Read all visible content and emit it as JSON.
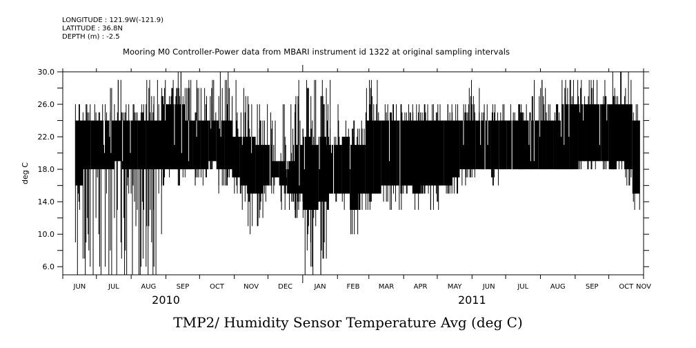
{
  "header": {
    "longitude": "LONGITUDE : 121.9W(-121.9)",
    "latitude": "LATITUDE : 36.8N",
    "depth": "DEPTH (m) : -2.5",
    "subtitle": "Mooring M0 Controller-Power data from MBARI instrument id 1322 at original sampling intervals"
  },
  "chart_data": {
    "type": "line",
    "title": "TMP2/ Humidity Sensor Temperature Avg (deg C)",
    "subtitle": "Mooring M0 Controller-Power data from MBARI instrument id 1322 at original sampling intervals",
    "xlabel": "",
    "ylabel": "deg C",
    "ylim": [
      5.0,
      30.0
    ],
    "xlim": [
      "2010-06-01",
      "2011-11-01"
    ],
    "grid": false,
    "y_ticks": [
      "6.0",
      "10.0",
      "14.0",
      "18.0",
      "22.0",
      "26.0",
      "30.0"
    ],
    "y_tick_values": [
      6,
      10,
      14,
      18,
      22,
      26,
      30
    ],
    "y_minor_tick_values": [
      8,
      12,
      16,
      20,
      24,
      28
    ],
    "x_ticks": [
      "JUN",
      "JUL",
      "AUG",
      "SEP",
      "OCT",
      "NOV",
      "DEC",
      "JAN",
      "FEB",
      "MAR",
      "APR",
      "MAY",
      "JUN",
      "JUL",
      "AUG",
      "SEP",
      "OCT",
      "NOV"
    ],
    "x_tick_dates": [
      "2010-06-01",
      "2010-07-01",
      "2010-08-01",
      "2010-09-01",
      "2010-10-01",
      "2010-11-01",
      "2010-12-01",
      "2011-01-01",
      "2011-02-01",
      "2011-03-01",
      "2011-04-01",
      "2011-05-01",
      "2011-06-01",
      "2011-07-01",
      "2011-08-01",
      "2011-09-01",
      "2011-10-01",
      "2011-11-01"
    ],
    "year_labels": [
      {
        "label": "2010",
        "date": "2010-09-01"
      },
      {
        "label": "2011",
        "date": "2011-06-01"
      }
    ],
    "series": [
      {
        "name": "TMP2 weekly envelope",
        "note": "Dense raw series summarized per week: [week_start_date, min, core_low, core_high, max] in deg C",
        "weeks": [
          [
            "2010-06-12",
            5.0,
            16.0,
            24.0,
            26.0
          ],
          [
            "2010-06-19",
            5.0,
            18.0,
            24.0,
            26.0
          ],
          [
            "2010-06-26",
            5.0,
            18.0,
            24.0,
            26.0
          ],
          [
            "2010-07-03",
            5.0,
            18.0,
            24.0,
            26.0
          ],
          [
            "2010-07-10",
            5.0,
            18.0,
            24.0,
            28.0
          ],
          [
            "2010-07-17",
            5.0,
            19.0,
            24.0,
            29.0
          ],
          [
            "2010-07-24",
            5.0,
            18.0,
            24.0,
            26.0
          ],
          [
            "2010-07-31",
            5.0,
            18.0,
            24.0,
            26.0
          ],
          [
            "2010-08-07",
            5.0,
            18.0,
            24.0,
            26.0
          ],
          [
            "2010-08-14",
            5.0,
            18.0,
            24.0,
            29.0
          ],
          [
            "2010-08-21",
            5.0,
            18.0,
            24.0,
            29.0
          ],
          [
            "2010-08-28",
            16.0,
            18.0,
            26.0,
            29.0
          ],
          [
            "2010-09-04",
            18.0,
            18.0,
            26.0,
            29.0
          ],
          [
            "2010-09-11",
            16.0,
            18.0,
            26.0,
            30.0
          ],
          [
            "2010-09-18",
            18.0,
            18.0,
            24.0,
            29.0
          ],
          [
            "2010-09-25",
            16.0,
            18.0,
            24.0,
            29.0
          ],
          [
            "2010-10-02",
            16.0,
            18.0,
            24.0,
            28.0
          ],
          [
            "2010-10-09",
            18.0,
            19.0,
            24.0,
            29.0
          ],
          [
            "2010-10-16",
            15.0,
            18.0,
            24.0,
            30.0
          ],
          [
            "2010-10-23",
            16.0,
            18.0,
            24.0,
            30.0
          ],
          [
            "2010-10-30",
            15.0,
            17.0,
            22.0,
            29.0
          ],
          [
            "2010-11-06",
            13.0,
            16.0,
            22.0,
            28.0
          ],
          [
            "2010-11-13",
            10.0,
            15.0,
            22.0,
            26.0
          ],
          [
            "2010-11-20",
            11.0,
            15.0,
            21.0,
            26.0
          ],
          [
            "2010-11-27",
            14.0,
            16.0,
            21.0,
            26.0
          ],
          [
            "2010-12-04",
            15.0,
            17.0,
            19.0,
            24.0
          ],
          [
            "2010-12-11",
            13.0,
            16.0,
            19.0,
            26.0
          ],
          [
            "2010-12-18",
            13.0,
            15.0,
            19.0,
            26.0
          ],
          [
            "2010-12-25",
            12.0,
            15.0,
            21.0,
            29.0
          ],
          [
            "2011-01-01",
            5.0,
            13.0,
            22.0,
            29.0
          ],
          [
            "2011-01-08",
            5.0,
            13.0,
            21.0,
            29.0
          ],
          [
            "2011-01-15",
            5.0,
            14.0,
            22.0,
            29.0
          ],
          [
            "2011-01-22",
            13.0,
            15.0,
            21.0,
            29.0
          ],
          [
            "2011-01-29",
            14.0,
            15.0,
            21.0,
            26.0
          ],
          [
            "2011-02-05",
            13.0,
            15.0,
            22.0,
            24.0
          ],
          [
            "2011-02-12",
            10.0,
            13.0,
            21.0,
            24.0
          ],
          [
            "2011-02-19",
            13.0,
            15.0,
            21.0,
            24.0
          ],
          [
            "2011-02-26",
            13.0,
            15.0,
            24.0,
            29.0
          ],
          [
            "2011-03-05",
            15.0,
            15.0,
            24.0,
            29.0
          ],
          [
            "2011-03-12",
            14.0,
            16.0,
            24.0,
            26.0
          ],
          [
            "2011-03-19",
            13.0,
            16.0,
            24.0,
            26.0
          ],
          [
            "2011-03-26",
            13.0,
            16.0,
            24.0,
            26.0
          ],
          [
            "2011-04-02",
            15.0,
            16.0,
            24.0,
            26.0
          ],
          [
            "2011-04-09",
            13.0,
            15.0,
            24.0,
            26.0
          ],
          [
            "2011-04-16",
            15.0,
            16.0,
            24.0,
            26.0
          ],
          [
            "2011-04-23",
            13.0,
            16.0,
            24.0,
            26.0
          ],
          [
            "2011-04-30",
            13.0,
            16.0,
            24.0,
            26.0
          ],
          [
            "2011-05-07",
            15.0,
            16.0,
            24.0,
            26.0
          ],
          [
            "2011-05-14",
            15.0,
            17.0,
            24.0,
            26.0
          ],
          [
            "2011-05-21",
            16.0,
            18.0,
            24.0,
            26.0
          ],
          [
            "2011-05-28",
            17.0,
            18.0,
            24.0,
            29.0
          ],
          [
            "2011-06-04",
            18.0,
            18.0,
            24.0,
            28.0
          ],
          [
            "2011-06-11",
            18.0,
            18.0,
            24.0,
            26.0
          ],
          [
            "2011-06-18",
            16.0,
            18.0,
            24.0,
            26.0
          ],
          [
            "2011-06-25",
            18.0,
            18.0,
            24.0,
            26.0
          ],
          [
            "2011-07-02",
            18.0,
            18.0,
            24.0,
            26.0
          ],
          [
            "2011-07-09",
            18.0,
            18.0,
            24.0,
            26.0
          ],
          [
            "2011-07-16",
            18.0,
            18.0,
            24.0,
            26.0
          ],
          [
            "2011-07-23",
            18.0,
            18.0,
            24.0,
            29.0
          ],
          [
            "2011-07-30",
            18.0,
            18.0,
            24.0,
            29.0
          ],
          [
            "2011-08-06",
            18.0,
            18.0,
            24.0,
            26.0
          ],
          [
            "2011-08-13",
            18.0,
            18.0,
            24.0,
            26.0
          ],
          [
            "2011-08-20",
            18.0,
            18.0,
            26.0,
            29.0
          ],
          [
            "2011-08-27",
            18.0,
            18.0,
            26.0,
            29.0
          ],
          [
            "2011-09-03",
            18.0,
            19.0,
            26.0,
            29.0
          ],
          [
            "2011-09-10",
            18.0,
            19.0,
            26.0,
            29.0
          ],
          [
            "2011-09-17",
            18.0,
            19.0,
            26.0,
            29.0
          ],
          [
            "2011-09-24",
            18.0,
            19.0,
            26.0,
            29.0
          ],
          [
            "2011-10-01",
            18.0,
            18.0,
            26.0,
            30.0
          ],
          [
            "2011-10-08",
            18.0,
            19.0,
            26.0,
            30.0
          ],
          [
            "2011-10-15",
            16.0,
            18.0,
            26.0,
            30.0
          ],
          [
            "2011-10-22",
            13.0,
            15.0,
            24.0,
            26.0
          ]
        ]
      }
    ]
  }
}
